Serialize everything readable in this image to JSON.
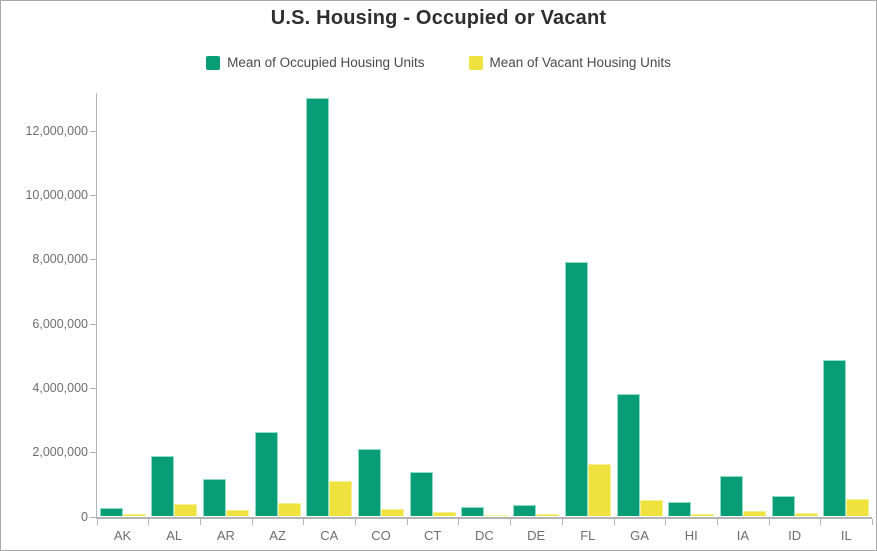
{
  "chart_data": {
    "type": "bar",
    "title": "U.S. Housing - Occupied or Vacant",
    "categories": [
      "AK",
      "AL",
      "AR",
      "AZ",
      "CA",
      "CO",
      "CT",
      "DC",
      "DE",
      "FL",
      "GA",
      "HI",
      "IA",
      "ID",
      "IL"
    ],
    "series": [
      {
        "name": "Mean of Occupied Housing Units",
        "color": "#089d77",
        "border_color": "#8fdcc5",
        "values": [
          250000,
          1870000,
          1160000,
          2630000,
          13000000,
          2110000,
          1390000,
          280000,
          370000,
          7900000,
          3810000,
          450000,
          1250000,
          650000,
          4870000
        ]
      },
      {
        "name": "Mean of Vacant Housing Units",
        "color": "#efe23e",
        "border_color": "#f6f095",
        "values": [
          70000,
          400000,
          210000,
          410000,
          1100000,
          220000,
          140000,
          50000,
          90000,
          1640000,
          500000,
          90000,
          160000,
          100000,
          550000
        ]
      }
    ],
    "y_axis": {
      "ticks": [
        {
          "value": 0,
          "label": "0"
        },
        {
          "value": 2000000,
          "label": "2,000,000"
        },
        {
          "value": 4000000,
          "label": "4,000,000"
        },
        {
          "value": 6000000,
          "label": "6,000,000"
        },
        {
          "value": 8000000,
          "label": "8,000,000"
        },
        {
          "value": 10000000,
          "label": "10,000,000"
        },
        {
          "value": 12000000,
          "label": "12,000,000"
        }
      ]
    },
    "ylim": [
      0,
      13170000
    ],
    "grid": false,
    "legend_position": "top",
    "xlabel": "",
    "ylabel": ""
  },
  "ui": {
    "frame_border_color": "#a9a9a9",
    "title_color": "#2f2f2f",
    "legend_text_color": "#4a4a4a",
    "axis_line_color": "#b4b4b4",
    "axis_label_color": "#6e6e6e"
  }
}
